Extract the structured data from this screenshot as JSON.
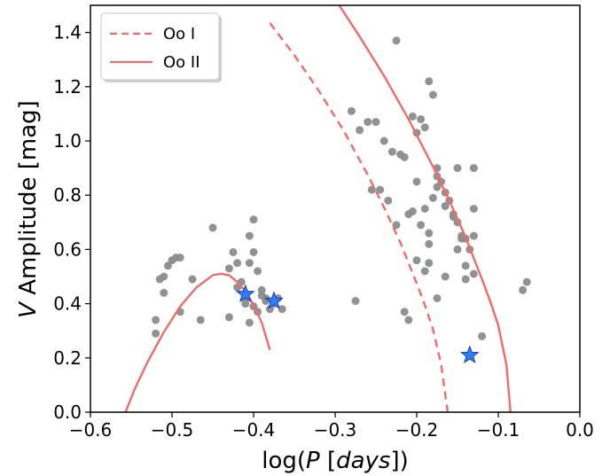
{
  "chart_data": {
    "type": "scatter",
    "title": "",
    "xlabel": {
      "prefix": "log(",
      "italic": "P",
      "middle": " [",
      "unit": "days",
      "suffix": "])"
    },
    "ylabel": {
      "italic": "V",
      "rest": " Amplitude [mag]"
    },
    "xlim": [
      -0.6,
      0.0
    ],
    "ylim": [
      0.0,
      1.5
    ],
    "x_ticks": [
      -0.6,
      -0.5,
      -0.4,
      -0.3,
      -0.2,
      -0.1,
      0.0
    ],
    "x_tick_labels": [
      "−0.6",
      "−0.5",
      "−0.4",
      "−0.3",
      "−0.2",
      "−0.1",
      "0.0"
    ],
    "y_ticks": [
      0.0,
      0.2,
      0.4,
      0.6,
      0.8,
      1.0,
      1.2,
      1.4
    ],
    "y_tick_labels": [
      "0.0",
      "0.2",
      "0.4",
      "0.6",
      "0.8",
      "1.0",
      "1.2",
      "1.4"
    ],
    "grid": false,
    "legend_position": "top-left",
    "legend": [
      {
        "label": "Oo I",
        "style": "dashed",
        "color": "#f06b6b"
      },
      {
        "label": "Oo II",
        "style": "solid",
        "color": "#f06b6b"
      }
    ],
    "colors": {
      "points": "#8c8c8c",
      "curves": "#f06b6b",
      "stars": "#2f7dff",
      "star_edge": "#1a3fa0"
    },
    "curves": [
      {
        "name": "Oo I",
        "style": "dashed",
        "points": [
          [
            -0.38,
            1.435
          ],
          [
            -0.35,
            1.316
          ],
          [
            -0.32,
            1.185
          ],
          [
            -0.29,
            1.04
          ],
          [
            -0.26,
            0.875
          ],
          [
            -0.24,
            0.755
          ],
          [
            -0.22,
            0.625
          ],
          [
            -0.2,
            0.475
          ],
          [
            -0.19,
            0.395
          ],
          [
            -0.18,
            0.305
          ],
          [
            -0.17,
            0.175
          ],
          [
            -0.162,
            0.0
          ]
        ]
      },
      {
        "name": "Oo II",
        "style": "solid",
        "points": [
          [
            -0.295,
            1.5
          ],
          [
            -0.27,
            1.385
          ],
          [
            -0.24,
            1.24
          ],
          [
            -0.21,
            1.08
          ],
          [
            -0.18,
            0.905
          ],
          [
            -0.16,
            0.78
          ],
          [
            -0.14,
            0.645
          ],
          [
            -0.12,
            0.49
          ],
          [
            -0.11,
            0.41
          ],
          [
            -0.1,
            0.32
          ],
          [
            -0.09,
            0.175
          ],
          [
            -0.085,
            0.0
          ]
        ]
      },
      {
        "name": "Oo II short period",
        "style": "solid",
        "points": [
          [
            -0.557,
            0.0
          ],
          [
            -0.545,
            0.09
          ],
          [
            -0.53,
            0.185
          ],
          [
            -0.51,
            0.295
          ],
          [
            -0.49,
            0.39
          ],
          [
            -0.47,
            0.46
          ],
          [
            -0.45,
            0.505
          ],
          [
            -0.44,
            0.51
          ],
          [
            -0.43,
            0.505
          ],
          [
            -0.42,
            0.48
          ],
          [
            -0.41,
            0.445
          ],
          [
            -0.4,
            0.395
          ],
          [
            -0.39,
            0.33
          ],
          [
            -0.38,
            0.23
          ]
        ]
      }
    ],
    "series": [
      {
        "kind": "points",
        "x": [
          -0.52,
          -0.515,
          -0.51,
          -0.505,
          -0.5,
          -0.495,
          -0.49,
          -0.51,
          -0.49,
          -0.465,
          -0.475,
          -0.45,
          -0.43,
          -0.43,
          -0.425,
          -0.42,
          -0.42,
          -0.415,
          -0.41,
          -0.405,
          -0.405,
          -0.4,
          -0.4,
          -0.395,
          -0.39,
          -0.39,
          -0.385,
          -0.38,
          -0.375,
          -0.37,
          -0.365,
          -0.52,
          -0.405,
          -0.41,
          -0.4,
          -0.395,
          -0.41,
          -0.385,
          -0.225,
          -0.28,
          -0.27,
          -0.26,
          -0.25,
          -0.24,
          -0.23,
          -0.22,
          -0.215,
          -0.205,
          -0.2,
          -0.195,
          -0.19,
          -0.185,
          -0.18,
          -0.175,
          -0.17,
          -0.165,
          -0.16,
          -0.155,
          -0.15,
          -0.145,
          -0.14,
          -0.135,
          -0.13,
          -0.255,
          -0.235,
          -0.225,
          -0.21,
          -0.205,
          -0.2,
          -0.19,
          -0.18,
          -0.175,
          -0.165,
          -0.155,
          -0.15,
          -0.145,
          -0.14,
          -0.13,
          -0.275,
          -0.215,
          -0.21,
          -0.185,
          -0.175,
          -0.13,
          -0.12,
          -0.07,
          -0.065,
          -0.185,
          -0.19,
          -0.175,
          -0.185,
          -0.195,
          -0.2,
          -0.245,
          -0.165,
          -0.15,
          -0.13,
          -0.14
        ],
        "y": [
          0.29,
          0.49,
          0.5,
          0.54,
          0.56,
          0.57,
          0.57,
          0.44,
          0.37,
          0.34,
          0.49,
          0.68,
          0.53,
          0.35,
          0.59,
          0.55,
          0.46,
          0.48,
          0.42,
          0.55,
          0.65,
          0.71,
          0.59,
          0.52,
          0.45,
          0.43,
          0.42,
          0.38,
          0.4,
          0.42,
          0.38,
          0.34,
          0.33,
          0.4,
          0.39,
          0.37,
          0.43,
          0.41,
          1.37,
          1.11,
          1.04,
          1.07,
          1.07,
          1.0,
          0.96,
          0.95,
          0.94,
          1.09,
          1.03,
          1.08,
          1.05,
          1.22,
          1.17,
          0.9,
          0.85,
          0.81,
          0.78,
          0.73,
          0.7,
          0.65,
          0.64,
          0.6,
          0.9,
          0.82,
          0.78,
          0.69,
          0.73,
          0.74,
          0.85,
          0.75,
          0.79,
          0.87,
          0.76,
          0.72,
          0.9,
          0.64,
          0.49,
          0.75,
          0.41,
          0.37,
          0.34,
          0.55,
          0.42,
          0.51,
          0.28,
          0.45,
          0.48,
          0.66,
          0.52,
          0.83,
          0.62,
          0.69,
          0.56,
          0.82,
          0.5,
          0.6,
          0.65,
          0.54
        ]
      },
      {
        "kind": "stars",
        "x": [
          -0.41,
          -0.375,
          -0.135
        ],
        "y": [
          0.435,
          0.41,
          0.21
        ]
      }
    ]
  }
}
